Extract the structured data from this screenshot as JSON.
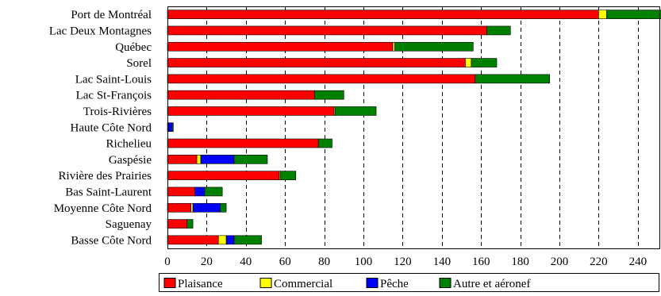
{
  "chart_data": {
    "type": "bar",
    "orientation": "horizontal",
    "stacked": true,
    "categories": [
      "Port de Montréal",
      "Lac Deux Montagnes",
      "Québec",
      "Sorel",
      "Lac Saint-Louis",
      "Lac St-François",
      "Trois-Rivières",
      "Haute Côte Nord",
      "Richelieu",
      "Gaspésie",
      "Rivière des Prairies",
      "Bas Saint-Laurent",
      "Moyenne Côte Nord",
      "Saguenay",
      "Basse Côte Nord"
    ],
    "series": [
      {
        "name": "Plaisance",
        "color": "#ff0000",
        "values": [
          220,
          163,
          115,
          152,
          157,
          75,
          85,
          0.5,
          77,
          15,
          57,
          14,
          12,
          10,
          26
        ]
      },
      {
        "name": "Commercial",
        "color": "#ffff00",
        "values": [
          4,
          0,
          1,
          3,
          0,
          0,
          0.5,
          0,
          0,
          2,
          0.5,
          0,
          1,
          0,
          4
        ]
      },
      {
        "name": "Pêche",
        "color": "#0000ff",
        "values": [
          0,
          0,
          0,
          0,
          0,
          0,
          0,
          2,
          0,
          17,
          0,
          5,
          14,
          0,
          4
        ]
      },
      {
        "name": "Autre et aéronef",
        "color": "#008000",
        "values": [
          28,
          12,
          40,
          13,
          38,
          15,
          21,
          0.5,
          7,
          17,
          8,
          9,
          3,
          3,
          14
        ]
      }
    ],
    "xlim": [
      0,
      251
    ],
    "xticks": [
      0,
      20,
      40,
      60,
      80,
      100,
      120,
      140,
      160,
      180,
      200,
      220,
      240
    ],
    "grid": "vertical dashed",
    "legend": "bottom"
  }
}
